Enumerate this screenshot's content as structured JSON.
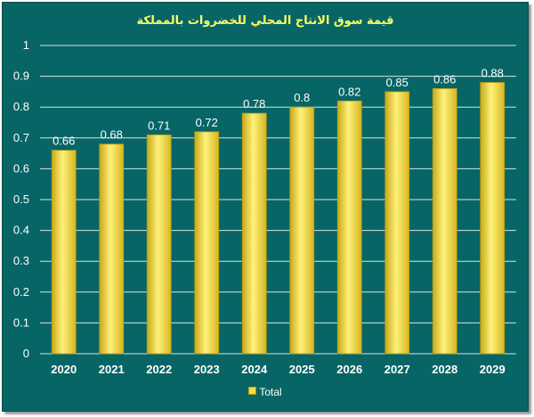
{
  "chart_data": {
    "type": "bar",
    "title": "قيمة سوق الانتاج المحلي للخضروات بالمملكة",
    "categories": [
      "2020",
      "2021",
      "2022",
      "2023",
      "2024",
      "2025",
      "2026",
      "2027",
      "2028",
      "2029"
    ],
    "series": [
      {
        "name": "Total",
        "values": [
          0.66,
          0.68,
          0.71,
          0.72,
          0.78,
          0.8,
          0.82,
          0.85,
          0.86,
          0.88
        ]
      }
    ],
    "ylim": [
      0,
      1
    ],
    "yticks": [
      "0",
      "0.1",
      "0.2",
      "0.3",
      "0.4",
      "0.5",
      "0.6",
      "0.7",
      "0.8",
      "0.9",
      "1"
    ],
    "grid": true,
    "legend_position": "bottom",
    "data_labels": true,
    "colors": {
      "background": "#076565",
      "bar": "#f6dc3c",
      "bar_edge": "#b89a10",
      "title": "#ffff66",
      "text": "#ffffff",
      "grid": "#d8e4e4"
    }
  }
}
